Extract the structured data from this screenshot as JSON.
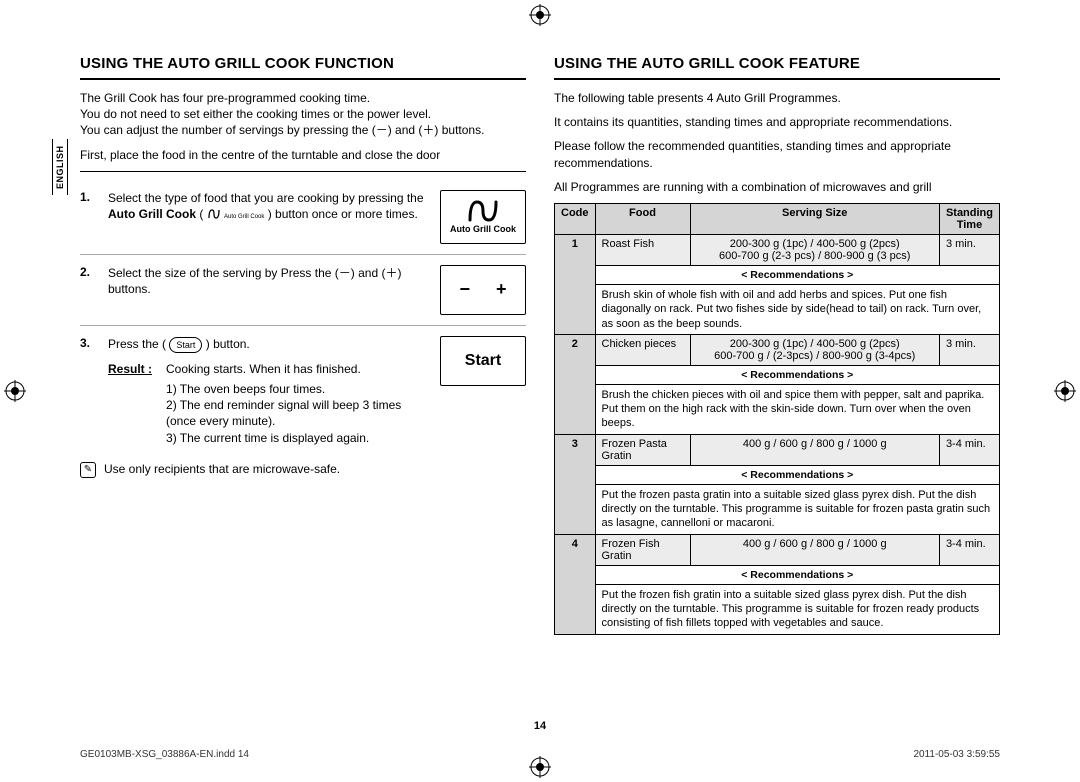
{
  "lang_tab": "ENGLISH",
  "left": {
    "heading": "USING THE AUTO GRILL COOK FUNCTION",
    "intro1": "The Grill Cook has four pre-programmed cooking time.",
    "intro2": "You do not need to set either the cooking times or the power level.",
    "intro3": "You can adjust the number of servings by pressing the (－) and (＋) buttons.",
    "intro4": "First, place the food in the centre of the turntable and close the door",
    "step1_pre": "Select the type of food that you are cooking by pressing the ",
    "step1_bold": "Auto Grill Cook",
    "step1_post": " button once or more times.",
    "step1_icon_label": "Auto Grill Cook",
    "step2": "Select the size of the serving by Press the (－) and (＋) buttons.",
    "step3_pre": "Press the ",
    "step3_post": " button.",
    "start_label": "Start",
    "result_label": "Result :",
    "result_text": "Cooking starts. When it has finished.",
    "result_1": "1)  The oven beeps four times.",
    "result_2": "2)  The end reminder signal will beep 3 times (once every minute).",
    "result_3": "3)  The current time is displayed again.",
    "note": "Use only recipients that are microwave-safe.",
    "minus": "−",
    "plus": "+",
    "start_big": "Start"
  },
  "right": {
    "heading": "USING THE AUTO GRILL COOK FEATURE",
    "intro1": "The following table presents 4 Auto Grill Programmes.",
    "intro2": "It contains  its quantities, standing times and appropriate recommendations.",
    "intro3": "Please follow the recommended quantities, standing times and appropriate recommendations.",
    "intro4": "All Programmes are running with a combination of microwaves and grill",
    "th_code": "Code",
    "th_food": "Food",
    "th_size": "Serving Size",
    "th_time": "Standing Time",
    "rec_label": "< Recommendations >",
    "rows": [
      {
        "code": "1",
        "food": "Roast Fish",
        "size1": "200-300 g (1pc) / 400-500 g (2pcs)",
        "size2": "600-700 g (2-3 pcs) / 800-900 g (3 pcs)",
        "time": "3 min.",
        "rec": "Brush skin of whole fish with oil and add herbs and spices. Put one fish diagonally on rack. Put two fishes side by side(head to tail) on rack. Turn over, as soon as the beep sounds."
      },
      {
        "code": "2",
        "food": "Chicken pieces",
        "size1": "200-300 g (1pc) / 400-500 g (2pcs)",
        "size2": "600-700 g / (2-3pcs) / 800-900 g (3-4pcs)",
        "time": "3 min.",
        "rec": "Brush the chicken pieces with oil and spice them with pepper, salt and paprika. Put them on the high rack with the skin-side down. Turn over when the oven beeps."
      },
      {
        "code": "3",
        "food": "Frozen Pasta Gratin",
        "size1": "400 g / 600 g / 800 g / 1000 g",
        "size2": "",
        "time": "3-4 min.",
        "rec": "Put the frozen pasta gratin into a suitable sized glass pyrex dish. Put the dish directly on the turntable. This programme is suitable for frozen pasta gratin such as lasagne, cannelloni or macaroni."
      },
      {
        "code": "4",
        "food": "Frozen Fish Gratin",
        "size1": "400 g / 600 g / 800 g / 1000 g",
        "size2": "",
        "time": "3-4 min.",
        "rec": "Put the frozen fish gratin into a suitable sized glass pyrex dish. Put the dish directly on the turntable. This programme is suitable for frozen ready products consisting of fish fillets topped with vegetables and sauce."
      }
    ]
  },
  "page_num": "14",
  "footer_left": "GE0103MB-XSG_03886A-EN.indd   14",
  "footer_right": "2011-05-03   3:59:55"
}
